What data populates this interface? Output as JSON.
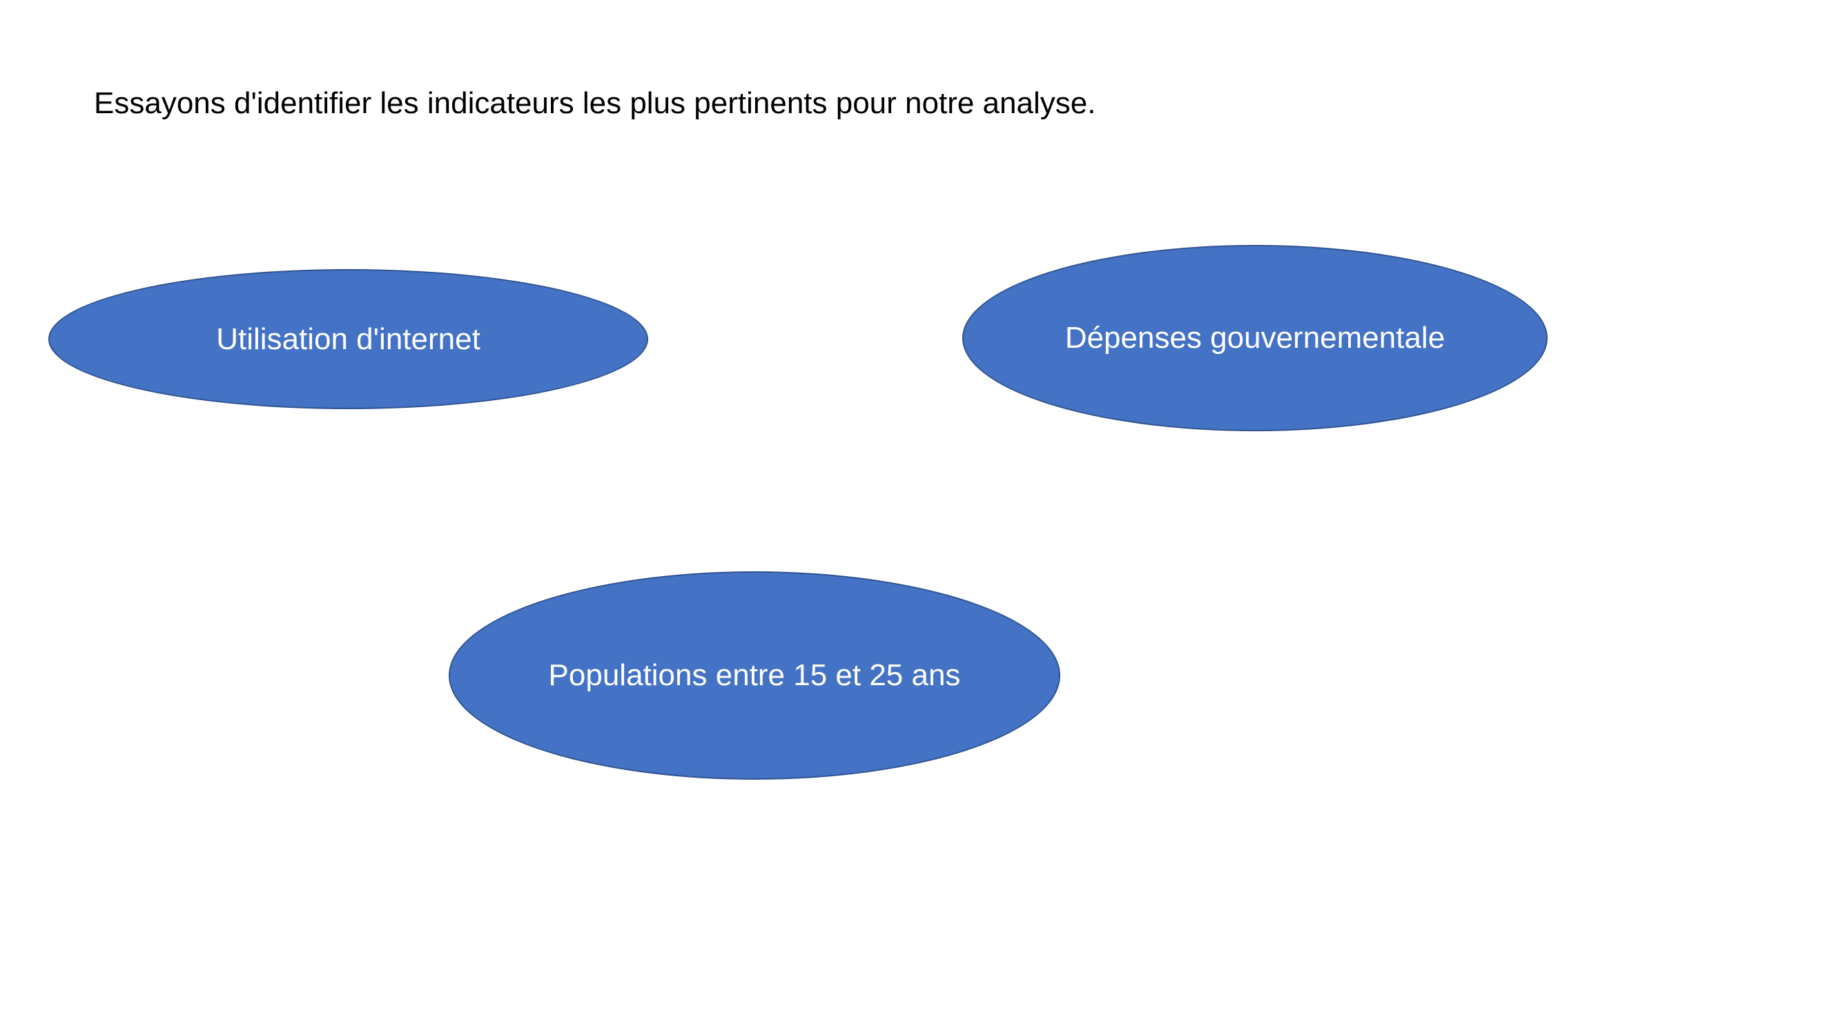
{
  "slide": {
    "instruction": "Essayons d'identifier les indicateurs les plus pertinents pour notre analyse."
  },
  "indicators": [
    {
      "label": "Utilisation d'internet"
    },
    {
      "label": "Dépenses gouvernementale"
    },
    {
      "label": "Populations entre 15 et 25 ans"
    }
  ],
  "colors": {
    "ellipse_fill": "#4472C4",
    "ellipse_border": "#2F528F",
    "label_text": "#FFFFFF",
    "instruction_text": "#000000",
    "background": "#FFFFFF"
  }
}
